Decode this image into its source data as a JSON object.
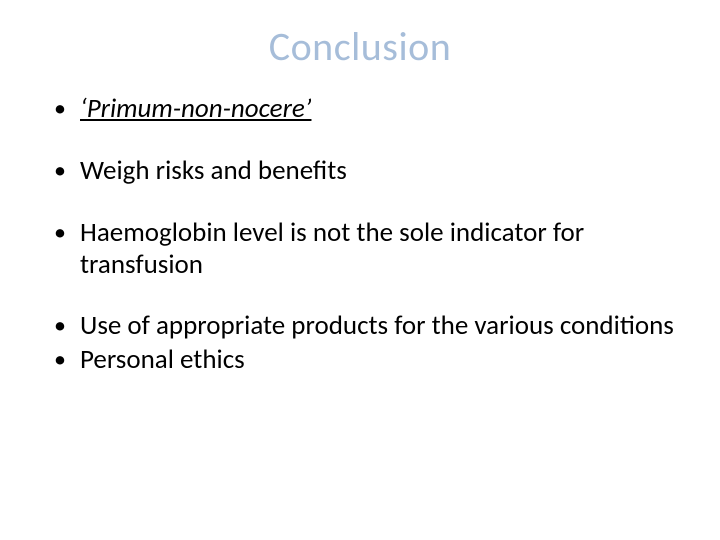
{
  "slide": {
    "title": "Conclusion",
    "title_color": "#a6bdd9",
    "title_fontsize": 40,
    "background_color": "#ffffff",
    "body_color": "#000000",
    "body_fontsize": 27,
    "bullets": [
      {
        "text": "‘Primum-non-nocere’",
        "italic": true,
        "underline": true
      },
      {
        "text": "Weigh risks and benefits"
      },
      {
        "text": "Haemoglobin level is not the sole indicator for transfusion"
      },
      {
        "text": "Use of appropriate products for the various conditions"
      },
      {
        "text": "Personal ethics"
      }
    ]
  }
}
